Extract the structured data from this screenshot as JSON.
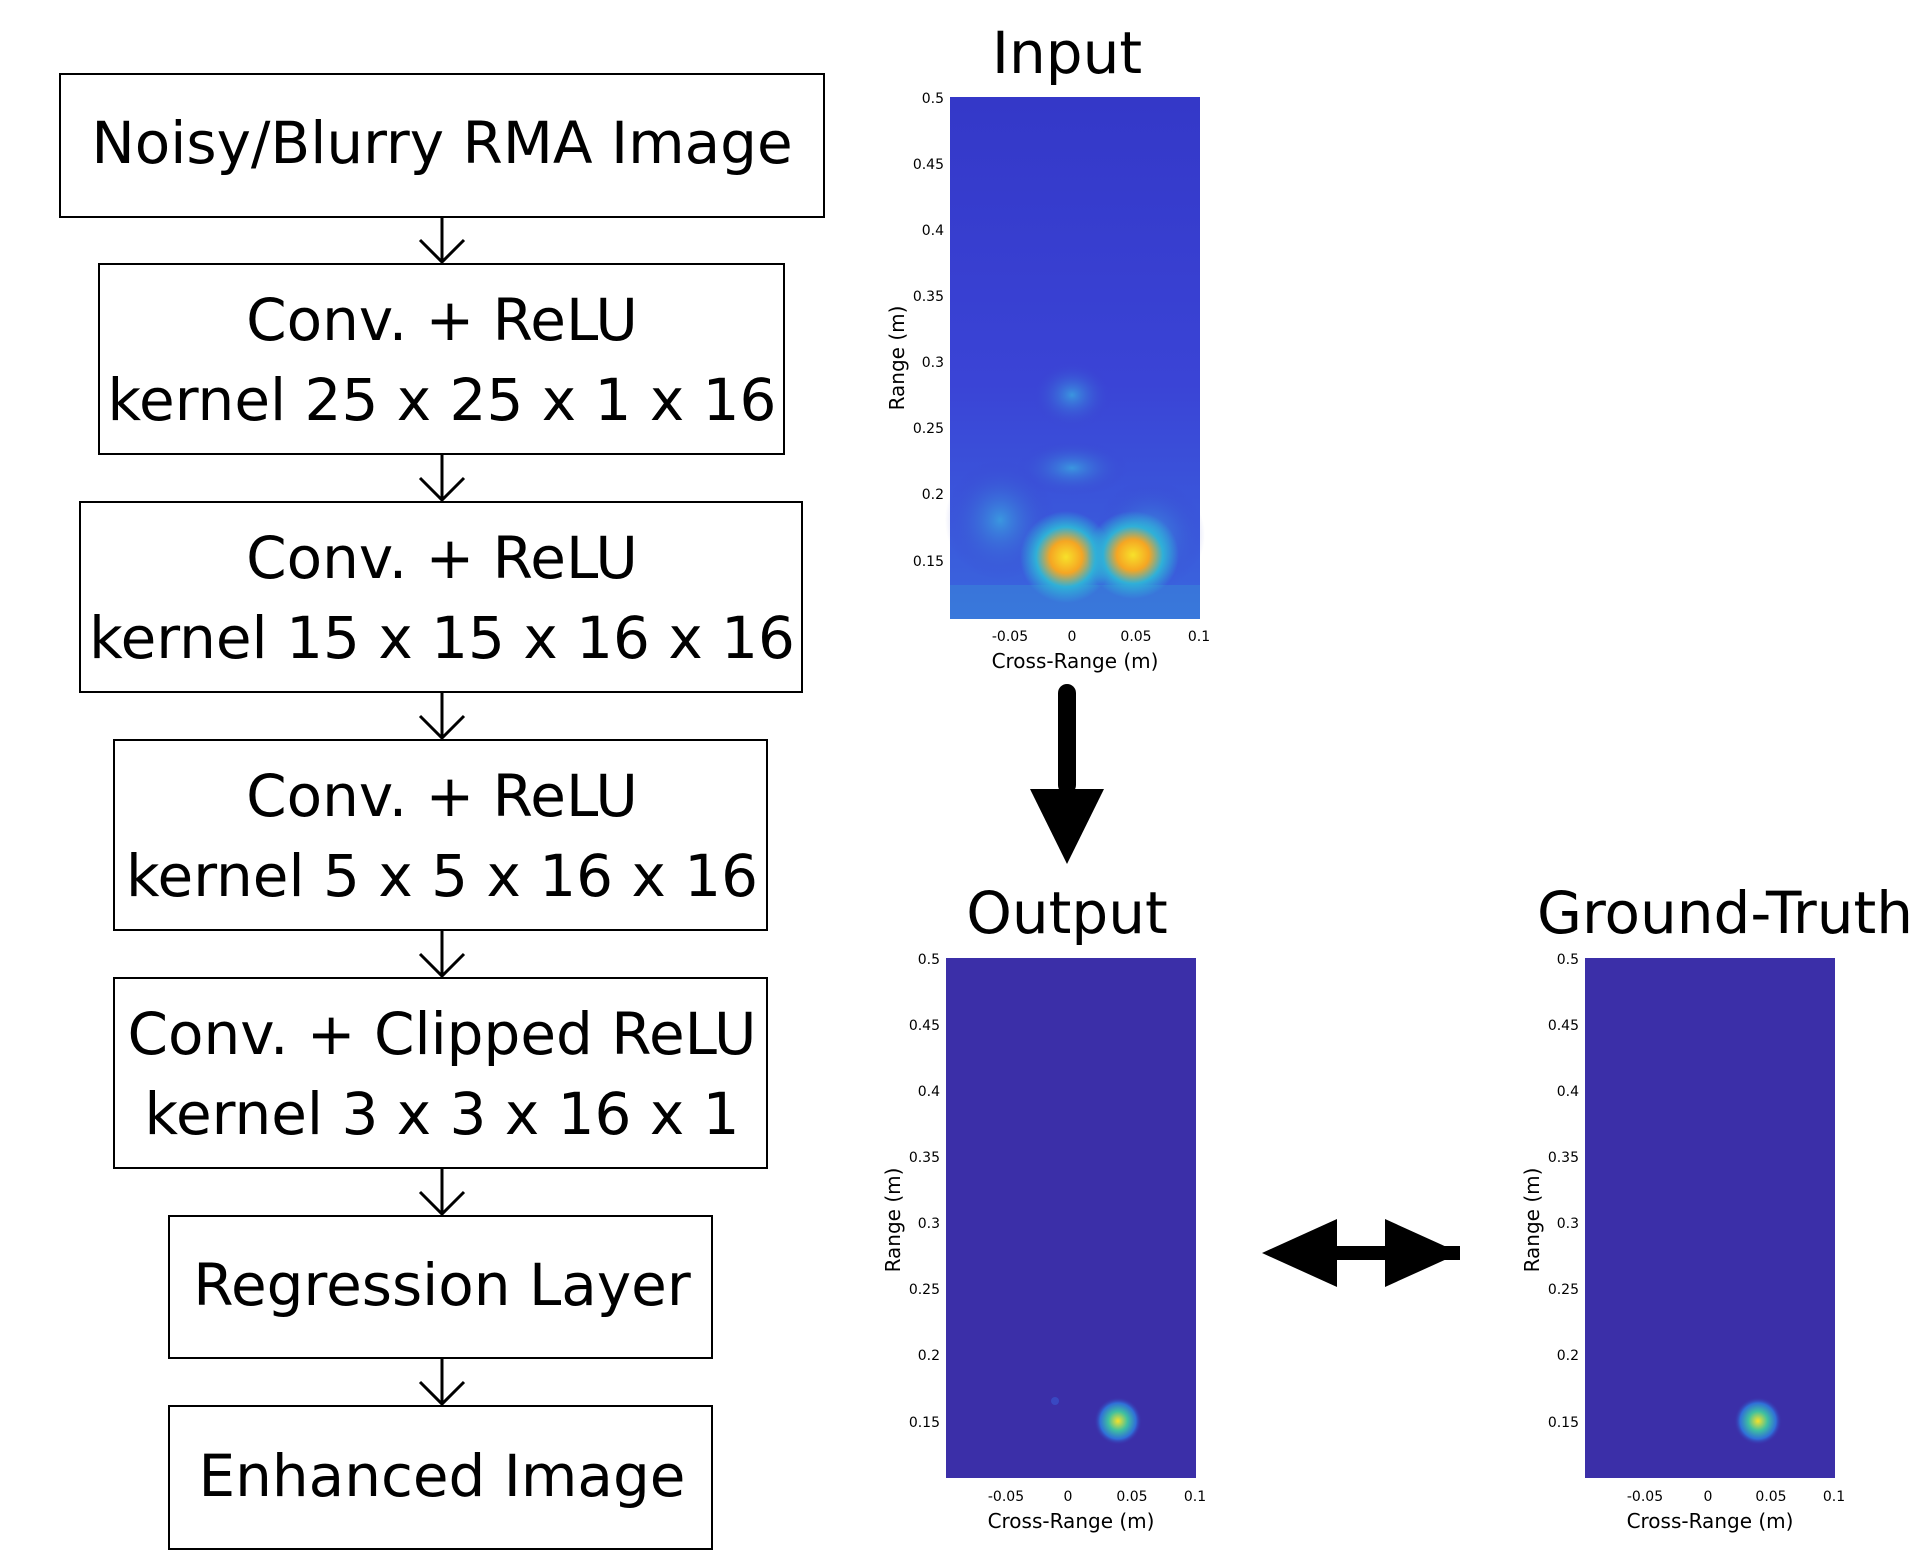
{
  "pipeline": {
    "steps": [
      {
        "line1": "Noisy/Blurry RMA Image",
        "line2": ""
      },
      {
        "line1": "Conv. + ReLU",
        "line2": "kernel 25 x 25 x 1 x 16"
      },
      {
        "line1": "Conv. + ReLU",
        "line2": "kernel 15 x 15 x 16 x 16"
      },
      {
        "line1": "Conv. + ReLU",
        "line2": "kernel 5 x 5 x 16 x 16"
      },
      {
        "line1": "Conv. + Clipped ReLU",
        "line2": "kernel 3 x 3 x 16 x 1"
      },
      {
        "line1": "Regression Layer",
        "line2": ""
      },
      {
        "line1": "Enhanced Image",
        "line2": ""
      }
    ]
  },
  "plots": [
    {
      "title": "Input",
      "xlabel": "Cross-Range (m)",
      "ylabel": "Range (m)",
      "xticks": [
        "-0.05",
        "0",
        "0.05",
        "0.1"
      ],
      "yticks": [
        "0.5",
        "0.45",
        "0.4",
        "0.35",
        "0.3",
        "0.25",
        "0.2",
        "0.15"
      ],
      "background_color": "#3a3fd0",
      "hotspots": [
        {
          "x": 0.0,
          "y": 0.15,
          "intensity": 1.0
        },
        {
          "x": 0.047,
          "y": 0.15,
          "intensity": 1.0
        }
      ]
    },
    {
      "title": "Output",
      "xlabel": "Cross-Range (m)",
      "ylabel": "Range (m)",
      "xticks": [
        "-0.05",
        "0",
        "0.05",
        "0.1"
      ],
      "yticks": [
        "0.5",
        "0.45",
        "0.4",
        "0.35",
        "0.3",
        "0.25",
        "0.2",
        "0.15"
      ],
      "background_color": "#3b2fa8",
      "hotspots": [
        {
          "x": 0.04,
          "y": 0.15,
          "intensity": 1.0
        }
      ]
    },
    {
      "title": "Ground-Truth",
      "xlabel": "Cross-Range (m)",
      "ylabel": "Range (m)",
      "xticks": [
        "-0.05",
        "0",
        "0.05",
        "0.1"
      ],
      "yticks": [
        "0.5",
        "0.45",
        "0.4",
        "0.35",
        "0.3",
        "0.25",
        "0.2",
        "0.15"
      ],
      "background_color": "#3b2fa8",
      "hotspots": [
        {
          "x": 0.04,
          "y": 0.15,
          "intensity": 1.0
        }
      ]
    }
  ],
  "colors": {
    "hot": "#f7e12a",
    "warm": "#f5a623",
    "mid": "#2fb0d8",
    "arrow": "#000000"
  }
}
